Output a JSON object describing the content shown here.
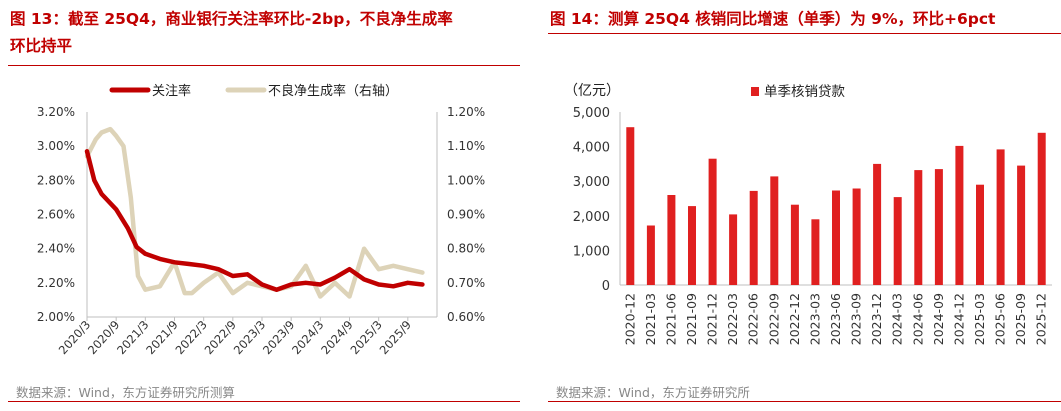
{
  "left": {
    "title_line1": "图 13：截至 25Q4，商业银行关注率环比-2bp，不良净生成率",
    "title_line2": "环比持平",
    "source": "数据来源：Wind，东方证券研究所测算"
  },
  "right": {
    "title": "图 14：测算 25Q4 核销同比增速（单季）为 9%，环比+6pct",
    "source": "数据来源：Wind，东方证券研究所"
  },
  "colors": {
    "red": "#c00000",
    "bar_red": "#e02020",
    "beige": "#ddd3b8",
    "axis": "#bfbfbf"
  },
  "chart_data": [
    {
      "type": "line",
      "x_tick_labels": [
        "2020/3",
        "2020/9",
        "2021/3",
        "2021/9",
        "2022/3",
        "2022/9",
        "2023/3",
        "2023/9",
        "2024/3",
        "2024/9",
        "2025/3",
        "2025/9"
      ],
      "y_left": {
        "ticks": [
          "2.00%",
          "2.20%",
          "2.40%",
          "2.60%",
          "2.80%",
          "3.00%",
          "3.20%"
        ],
        "lim": [
          2.0,
          3.2
        ]
      },
      "y_right": {
        "ticks": [
          "0.60%",
          "0.70%",
          "0.80%",
          "0.90%",
          "1.00%",
          "1.10%",
          "1.20%"
        ],
        "lim": [
          0.6,
          1.2
        ]
      },
      "legend_position": "top",
      "series": [
        {
          "name": "关注率",
          "axis": "left",
          "color": "#c00000",
          "points": [
            [
              0,
              2.97
            ],
            [
              0.5,
              2.8
            ],
            [
              1,
              2.72
            ],
            [
              2,
              2.63
            ],
            [
              2.8,
              2.52
            ],
            [
              3.4,
              2.41
            ],
            [
              4,
              2.37
            ],
            [
              5,
              2.34
            ],
            [
              6,
              2.32
            ],
            [
              7,
              2.31
            ],
            [
              8,
              2.3
            ],
            [
              9,
              2.28
            ],
            [
              10,
              2.24
            ],
            [
              11,
              2.25
            ],
            [
              12,
              2.19
            ],
            [
              13,
              2.16
            ],
            [
              14,
              2.19
            ],
            [
              15,
              2.2
            ],
            [
              16,
              2.19
            ],
            [
              17,
              2.23
            ],
            [
              18,
              2.28
            ],
            [
              19,
              2.22
            ],
            [
              20,
              2.19
            ],
            [
              21,
              2.18
            ],
            [
              22,
              2.2
            ],
            [
              23,
              2.19
            ]
          ]
        },
        {
          "name": "不良净生成率（右轴）",
          "axis": "right",
          "color": "#ddd3b8",
          "points": [
            [
              0,
              1.07
            ],
            [
              0.6,
              1.12
            ],
            [
              1,
              1.14
            ],
            [
              1.6,
              1.15
            ],
            [
              2,
              1.13
            ],
            [
              2.5,
              1.1
            ],
            [
              3,
              0.95
            ],
            [
              3.5,
              0.72
            ],
            [
              4,
              0.68
            ],
            [
              5,
              0.69
            ],
            [
              6,
              0.76
            ],
            [
              6.7,
              0.67
            ],
            [
              7.2,
              0.67
            ],
            [
              8,
              0.7
            ],
            [
              9,
              0.73
            ],
            [
              10,
              0.67
            ],
            [
              11,
              0.7
            ],
            [
              12,
              0.69
            ],
            [
              13,
              0.68
            ],
            [
              14,
              0.69
            ],
            [
              15,
              0.75
            ],
            [
              16,
              0.66
            ],
            [
              17,
              0.7
            ],
            [
              18,
              0.66
            ],
            [
              19,
              0.8
            ],
            [
              20,
              0.74
            ],
            [
              21,
              0.75
            ],
            [
              22,
              0.74
            ],
            [
              23,
              0.73
            ]
          ]
        }
      ]
    },
    {
      "type": "bar",
      "unit_label": "（亿元）",
      "categories": [
        "2020-12",
        "2021-03",
        "2021-06",
        "2021-09",
        "2021-12",
        "2022-03",
        "2022-06",
        "2022-09",
        "2022-12",
        "2023-03",
        "2023-06",
        "2023-09",
        "2023-12",
        "2024-03",
        "2024-06",
        "2024-09",
        "2024-12",
        "2025-03",
        "2025-06",
        "2025-09",
        "2025-12"
      ],
      "series": [
        {
          "name": "单季核销贷款",
          "values": [
            4560,
            1720,
            2600,
            2280,
            3650,
            2040,
            2720,
            3140,
            2320,
            1900,
            2730,
            2790,
            3500,
            2540,
            3320,
            3350,
            4020,
            2900,
            3920,
            3450,
            4400
          ]
        }
      ],
      "y_ticks": [
        "0",
        "1,000",
        "2,000",
        "3,000",
        "4,000",
        "5,000"
      ],
      "ylim": [
        0,
        5000
      ],
      "legend_position": "top"
    }
  ]
}
